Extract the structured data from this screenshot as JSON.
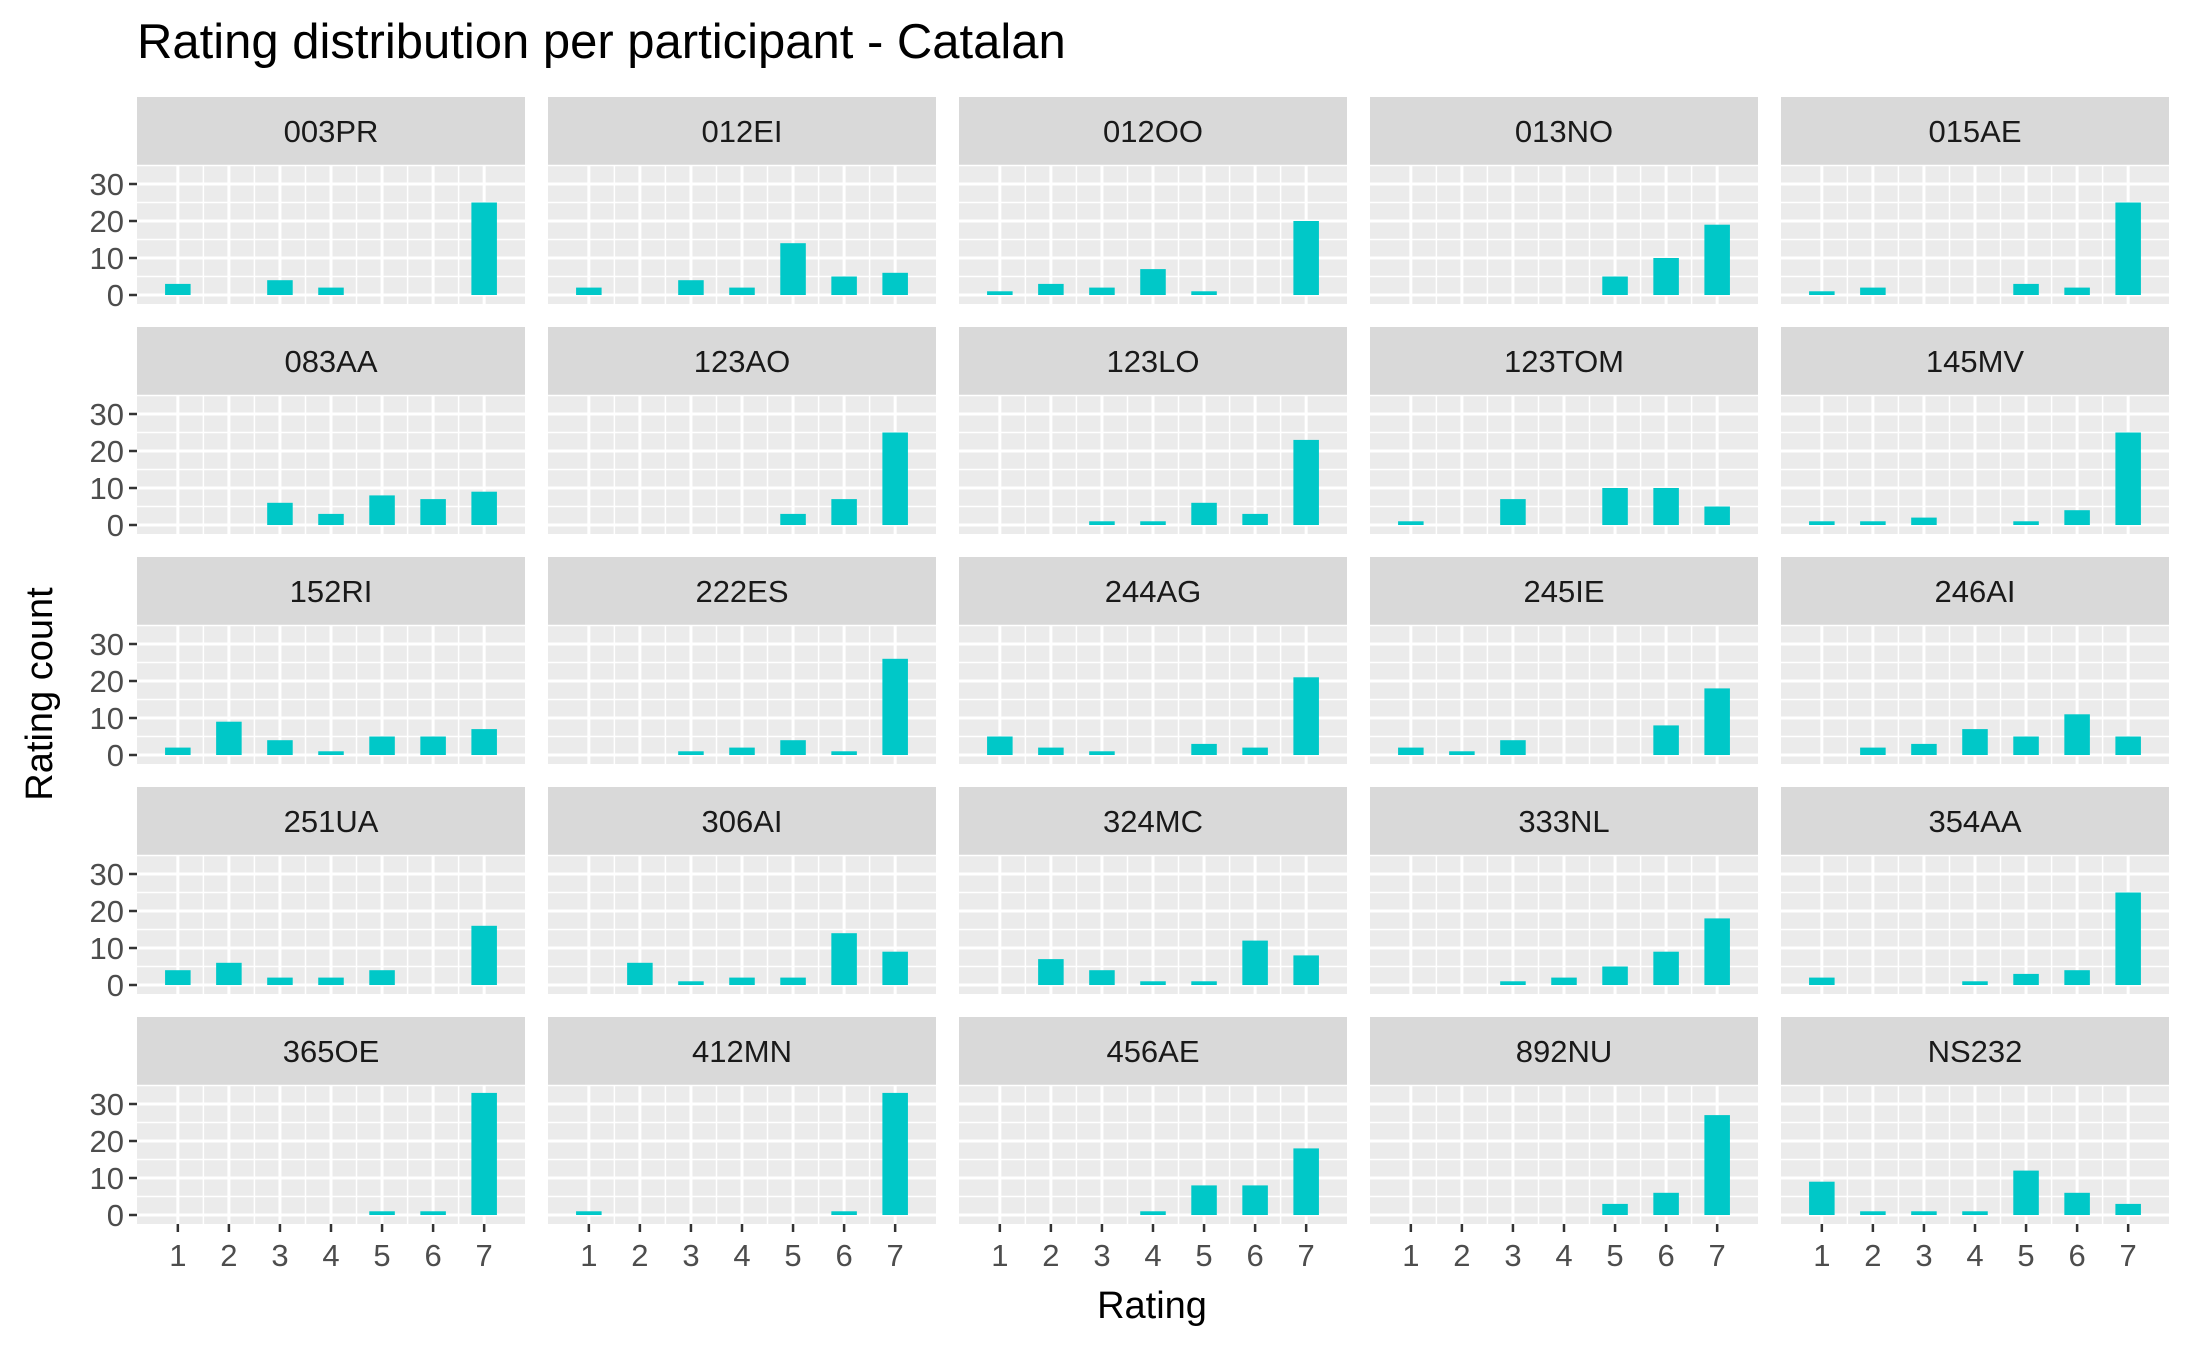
{
  "chart_data": {
    "type": "bar",
    "title": "Rating distribution per participant - Catalan",
    "xlabel": "Rating",
    "ylabel": "Rating count",
    "facet_layout": {
      "rows": 5,
      "cols": 5
    },
    "categories": [
      "1",
      "2",
      "3",
      "4",
      "5",
      "6",
      "7"
    ],
    "ylim": [
      0,
      33
    ],
    "yticks": [
      0,
      10,
      20,
      30
    ],
    "bar_color": "#00C8C8",
    "panel_bg": "#EBEBEB",
    "strip_bg": "#D9D9D9",
    "grid": true,
    "panels": [
      {
        "label": "003PR",
        "values": [
          3,
          0,
          4,
          2,
          0,
          0,
          25
        ]
      },
      {
        "label": "012EI",
        "values": [
          2,
          0,
          4,
          2,
          14,
          5,
          6
        ]
      },
      {
        "label": "012OO",
        "values": [
          1,
          3,
          2,
          7,
          1,
          0,
          20
        ]
      },
      {
        "label": "013NO",
        "values": [
          0,
          0,
          0,
          0,
          5,
          10,
          19
        ]
      },
      {
        "label": "015AE",
        "values": [
          1,
          2,
          0,
          0,
          3,
          2,
          25
        ]
      },
      {
        "label": "083AA",
        "values": [
          0,
          0,
          6,
          3,
          8,
          7,
          9
        ]
      },
      {
        "label": "123AO",
        "values": [
          0,
          0,
          0,
          0,
          3,
          7,
          25
        ]
      },
      {
        "label": "123LO",
        "values": [
          0,
          0,
          1,
          1,
          6,
          3,
          23
        ]
      },
      {
        "label": "123TOM",
        "values": [
          1,
          0,
          7,
          0,
          10,
          10,
          5
        ]
      },
      {
        "label": "145MV",
        "values": [
          1,
          1,
          2,
          0,
          1,
          4,
          25
        ]
      },
      {
        "label": "152RI",
        "values": [
          2,
          9,
          4,
          1,
          5,
          5,
          7
        ]
      },
      {
        "label": "222ES",
        "values": [
          0,
          0,
          1,
          2,
          4,
          1,
          26
        ]
      },
      {
        "label": "244AG",
        "values": [
          5,
          2,
          1,
          0,
          3,
          2,
          21
        ]
      },
      {
        "label": "245IE",
        "values": [
          2,
          1,
          4,
          0,
          0,
          8,
          18
        ]
      },
      {
        "label": "246AI",
        "values": [
          0,
          2,
          3,
          7,
          5,
          11,
          5
        ]
      },
      {
        "label": "251UA",
        "values": [
          4,
          6,
          2,
          2,
          4,
          0,
          16
        ]
      },
      {
        "label": "306AI",
        "values": [
          0,
          6,
          1,
          2,
          2,
          14,
          9
        ]
      },
      {
        "label": "324MC",
        "values": [
          0,
          7,
          4,
          1,
          1,
          12,
          8
        ]
      },
      {
        "label": "333NL",
        "values": [
          0,
          0,
          1,
          2,
          5,
          9,
          18
        ]
      },
      {
        "label": "354AA",
        "values": [
          2,
          0,
          0,
          1,
          3,
          4,
          25
        ]
      },
      {
        "label": "365OE",
        "values": [
          0,
          0,
          0,
          0,
          1,
          1,
          33
        ]
      },
      {
        "label": "412MN",
        "values": [
          1,
          0,
          0,
          0,
          0,
          1,
          33
        ]
      },
      {
        "label": "456AE",
        "values": [
          0,
          0,
          0,
          1,
          8,
          8,
          18
        ]
      },
      {
        "label": "892NU",
        "values": [
          0,
          0,
          0,
          0,
          3,
          6,
          27
        ]
      },
      {
        "label": "NS232",
        "values": [
          9,
          1,
          1,
          1,
          12,
          6,
          3
        ]
      }
    ]
  }
}
